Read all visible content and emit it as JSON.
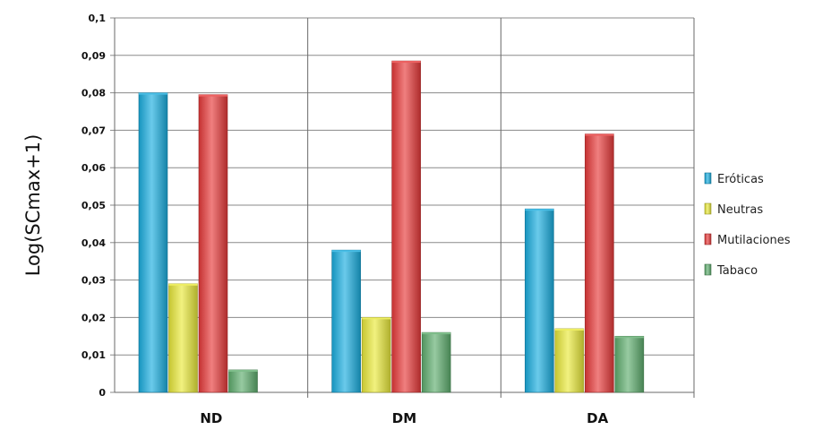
{
  "chart_data": {
    "type": "bar",
    "title": "",
    "xlabel": "",
    "ylabel": "Log(SCmax+1)",
    "ylim": [
      0,
      0.1
    ],
    "yticks": [
      "0",
      "0,01",
      "0,02",
      "0,03",
      "0,04",
      "0,05",
      "0,06",
      "0,07",
      "0,08",
      "0,09",
      "0,1"
    ],
    "categories": [
      "ND",
      "DM",
      "DA"
    ],
    "legend_position": "right",
    "grid": true,
    "series": [
      {
        "name": "Eróticas",
        "values": [
          0.08,
          0.038,
          0.049
        ],
        "color": "#1aaee0"
      },
      {
        "name": "Neutras",
        "values": [
          0.029,
          0.02,
          0.017
        ],
        "color": "#e9e93a"
      },
      {
        "name": "Mutilaciones",
        "values": [
          0.0795,
          0.0885,
          0.069
        ],
        "color": "#e83a3a"
      },
      {
        "name": "Tabaco",
        "values": [
          0.006,
          0.016,
          0.015
        ],
        "color": "#5fae6e"
      }
    ]
  }
}
